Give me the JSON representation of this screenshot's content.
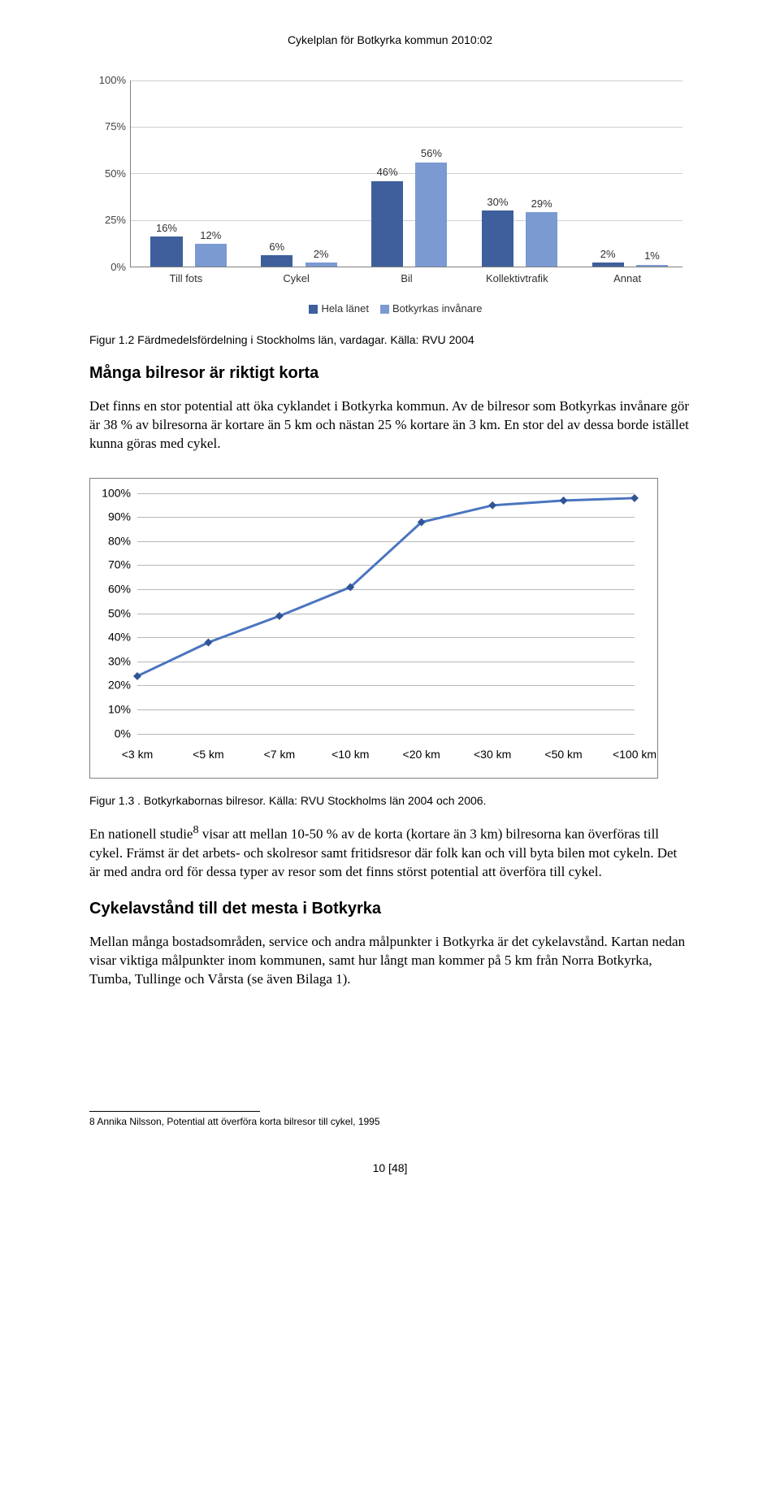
{
  "header": "Cykelplan för Botkyrka kommun 2010:02",
  "chart1": {
    "type": "bar",
    "ylim": [
      0,
      100
    ],
    "yticks": [
      0,
      25,
      50,
      75,
      100
    ],
    "ytick_labels": [
      "0%",
      "25%",
      "50%",
      "75%",
      "100%"
    ],
    "categories": [
      "Till fots",
      "Cykel",
      "Bil",
      "Kollektivtrafik",
      "Annat"
    ],
    "series": [
      {
        "name": "Hela länet",
        "color": "#3e5f9b",
        "values": [
          16,
          6,
          46,
          30,
          2
        ]
      },
      {
        "name": "Botkyrkas invånare",
        "color": "#7a9ad1",
        "values": [
          12,
          2,
          56,
          29,
          1
        ]
      }
    ],
    "bar_label_suffix": "%",
    "background_color": "#ffffff",
    "grid_color": "#d0d0d0",
    "axis_color": "#808080",
    "label_fontsize": 13
  },
  "caption1": "Figur 1.2 Färdmedelsfördelning i Stockholms län, vardagar. Källa: RVU 2004",
  "subhead1": "Många bilresor är riktigt korta",
  "para1": "Det finns en stor potential att öka cyklandet i Botkyrka kommun. Av de bilresor som Botkyrkas invånare gör är 38 % av bilresorna är kortare än 5 km och nästan 25 % kortare än 3 km. En stor del av dessa borde istället kunna göras med cykel.",
  "chart2": {
    "type": "line",
    "ylim": [
      0,
      100
    ],
    "yticks": [
      0,
      10,
      20,
      30,
      40,
      50,
      60,
      70,
      80,
      90,
      100
    ],
    "ytick_labels": [
      "0%",
      "10%",
      "20%",
      "30%",
      "40%",
      "50%",
      "60%",
      "70%",
      "80%",
      "90%",
      "100%"
    ],
    "x_labels": [
      "<3 km",
      "<5 km",
      "<7 km",
      "<10 km",
      "<20 km",
      "<30 km",
      "<50 km",
      "<100 km"
    ],
    "values": [
      24,
      38,
      49,
      61,
      88,
      95,
      97,
      98
    ],
    "line_color": "#4a74c0",
    "marker_color": "#2f5597",
    "marker": "diamond",
    "marker_size": 10,
    "line_width": 3,
    "grid_color": "#b8b8b8",
    "border_color": "#808080",
    "background_color": "#ffffff",
    "label_fontsize": 14
  },
  "caption2": "Figur 1.3 . Botkyrkabornas bilresor. Källa: RVU Stockholms län 2004 och 2006.",
  "para2_a": "En nationell studie",
  "para2_sup": "8",
  "para2_b": " visar att mellan 10-50 % av de korta (kortare än 3 km) bilresorna kan överföras till cykel. Främst är det arbets- och skolresor samt fritidsresor där folk kan och vill byta bilen mot cykeln. Det är med andra ord för dessa typer av resor som det finns störst potential att överföra till cykel.",
  "subhead2": "Cykelavstånd till det mesta i Botkyrka",
  "para3": "Mellan många bostadsområden, service och andra målpunkter i Botkyrka är det cykelavstånd. Kartan nedan visar viktiga målpunkter inom kommunen, samt hur långt man kommer på 5 km från Norra Botkyrka, Tumba, Tullinge och Vårsta (se även Bilaga 1).",
  "footnote": "8 Annika Nilsson, Potential att överföra korta bilresor till cykel, 1995",
  "page_num": "10 [48]"
}
